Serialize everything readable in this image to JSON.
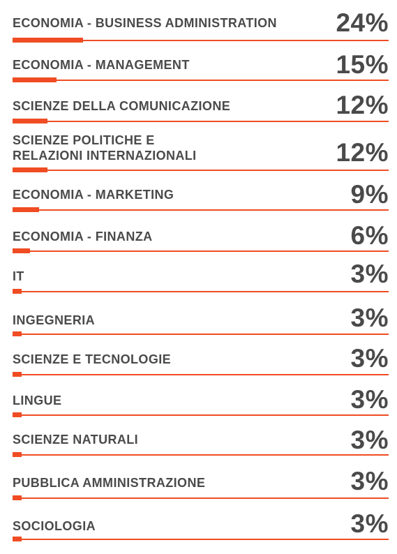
{
  "chart_data": {
    "type": "bar",
    "orientation": "horizontal",
    "accent_color": "#f04c23",
    "text_color": "#4a4a4a",
    "unit": "%",
    "categories": [
      "ECONOMIA - BUSINESS ADMINISTRATION",
      "ECONOMIA - MANAGEMENT",
      "SCIENZE DELLA COMUNICAZIONE",
      "SCIENZE POLITICHE E\nRELAZIONI INTERNAZIONALI",
      "ECONOMIA - MARKETING",
      "ECONOMIA - FINANZA",
      "IT",
      "INGEGNERIA",
      "SCIENZE E TECNOLOGIE",
      "LINGUE",
      "SCIENZE NATURALI",
      "PUBBLICA AMMINISTRAZIONE",
      "SOCIOLOGIA"
    ],
    "values": [
      24,
      15,
      12,
      12,
      9,
      6,
      3,
      3,
      3,
      3,
      3,
      3,
      3
    ],
    "value_labels": [
      "24%",
      "15%",
      "12%",
      "12%",
      "9%",
      "6%",
      "3%",
      "3%",
      "3%",
      "3%",
      "3%",
      "3%",
      "3%"
    ],
    "xlim": [
      0,
      100
    ]
  }
}
